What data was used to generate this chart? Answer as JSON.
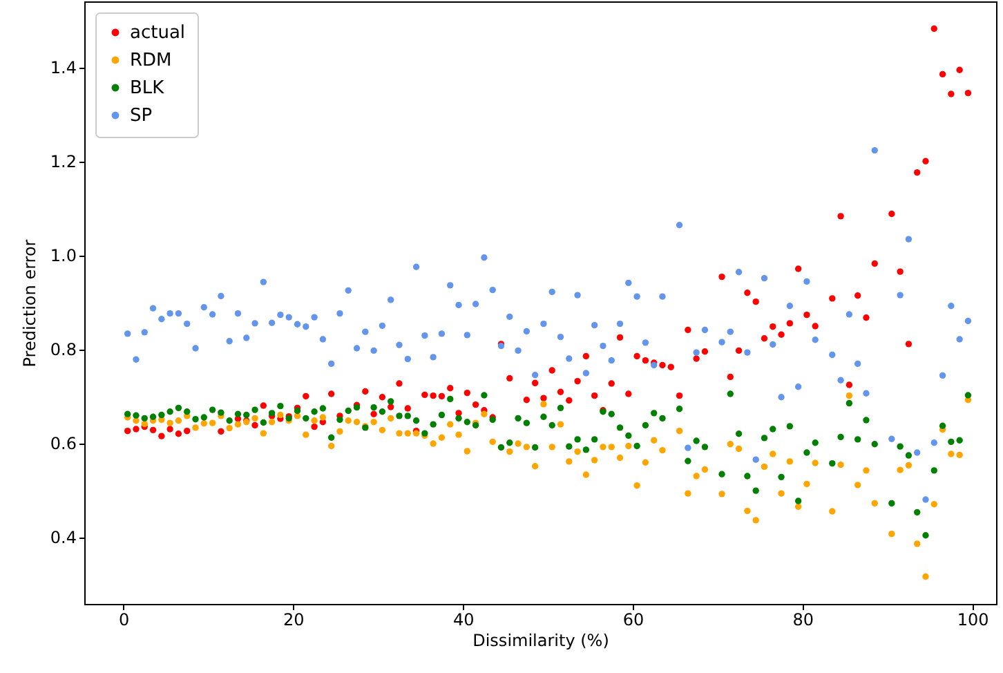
{
  "chart_data": {
    "type": "scatter",
    "xlabel": "Dissimilarity (%)",
    "ylabel": "Prediction error",
    "xlim": [
      -4.6,
      102.8
    ],
    "ylim": [
      0.258,
      1.54
    ],
    "xticks": [
      0,
      20,
      40,
      60,
      80,
      100
    ],
    "yticks": [
      0.4,
      0.6,
      0.8,
      {
        "value": 1.0,
        "label": "1.0"
      },
      1.2,
      1.4
    ],
    "legend": "top left",
    "marker": "circle",
    "series": [
      {
        "name": "actual",
        "color": "#ff0000",
        "x": [
          0.5,
          1.5,
          2.5,
          3.5,
          4.5,
          5.5,
          6.5,
          7.5,
          11.5,
          13.5,
          14.5,
          15.5,
          16.5,
          17.5,
          18.5,
          19.5,
          20.5,
          21.5,
          22.5,
          23.5,
          24.5,
          25.5,
          27.5,
          28.5,
          29.5,
          30.5,
          31.5,
          32.5,
          33.5,
          34.5,
          35.5,
          36.5,
          37.5,
          38.5,
          39.5,
          40.5,
          41.5,
          42.5,
          43.5,
          44.5,
          45.5,
          47.5,
          48.5,
          49.5,
          50.5,
          51.5,
          52.5,
          53.5,
          54.5,
          55.5,
          56.5,
          57.5,
          58.5,
          59.5,
          60.5,
          61.5,
          62.5,
          63.5,
          64.5,
          65.5,
          66.5,
          67.5,
          68.5,
          70.5,
          71.5,
          72.5,
          73.5,
          74.5,
          75.5,
          76.5,
          77.5,
          78.5,
          79.5,
          80.5,
          81.5,
          83.5,
          84.5,
          85.5,
          86.5,
          87.5,
          88.5,
          90.5,
          91.5,
          92.5,
          93.5,
          94.5,
          95.5,
          96.5,
          97.5,
          98.5,
          99.5
        ],
        "values": [
          0.626,
          0.63,
          0.635,
          0.628,
          0.615,
          0.63,
          0.62,
          0.626,
          0.625,
          0.652,
          0.648,
          0.638,
          0.68,
          0.658,
          0.652,
          0.657,
          0.675,
          0.7,
          0.635,
          0.645,
          0.705,
          0.658,
          0.681,
          0.71,
          0.662,
          0.698,
          0.677,
          0.727,
          0.674,
          0.626,
          0.703,
          0.701,
          0.7,
          0.717,
          0.664,
          0.707,
          0.682,
          0.67,
          0.655,
          0.811,
          0.738,
          0.692,
          0.728,
          0.696,
          0.755,
          0.709,
          0.691,
          0.732,
          0.785,
          0.701,
          0.67,
          0.727,
          0.825,
          0.705,
          0.785,
          0.776,
          0.771,
          0.766,
          0.762,
          0.701,
          0.841,
          0.78,
          0.795,
          0.954,
          0.741,
          0.797,
          0.92,
          0.901,
          0.823,
          0.848,
          0.831,
          0.855,
          0.971,
          0.873,
          0.849,
          0.908,
          1.083,
          0.724,
          0.914,
          0.867,
          0.982,
          1.088,
          0.965,
          0.811,
          1.176,
          1.2,
          1.482,
          1.385,
          1.343,
          1.394,
          1.345
        ]
      },
      {
        "name": "RDM",
        "color": "#ffa500",
        "x": [
          0.5,
          1.5,
          2.5,
          3.5,
          4.5,
          5.5,
          6.5,
          7.5,
          8.5,
          9.5,
          10.5,
          11.5,
          12.5,
          13.5,
          14.5,
          15.5,
          16.5,
          17.5,
          18.5,
          19.5,
          20.5,
          21.5,
          22.5,
          23.5,
          24.5,
          25.5,
          26.5,
          27.5,
          28.5,
          29.5,
          30.5,
          31.5,
          32.5,
          33.5,
          34.5,
          35.5,
          36.5,
          37.5,
          38.5,
          39.5,
          40.5,
          41.5,
          42.5,
          43.5,
          45.5,
          46.5,
          47.5,
          48.5,
          49.5,
          50.5,
          51.5,
          52.5,
          53.5,
          54.5,
          55.5,
          56.5,
          57.5,
          58.5,
          59.5,
          60.5,
          61.5,
          62.5,
          63.5,
          65.5,
          66.5,
          67.5,
          68.5,
          70.5,
          71.5,
          72.5,
          73.5,
          74.5,
          75.5,
          76.5,
          77.5,
          78.5,
          79.5,
          80.5,
          81.5,
          83.5,
          84.5,
          85.5,
          86.5,
          87.5,
          88.5,
          90.5,
          91.5,
          92.5,
          93.5,
          94.5,
          95.5,
          96.5,
          97.5,
          98.5,
          99.5
        ],
        "values": [
          0.655,
          0.648,
          0.641,
          0.648,
          0.65,
          0.643,
          0.648,
          0.658,
          0.633,
          0.642,
          0.643,
          0.658,
          0.632,
          0.64,
          0.645,
          0.653,
          0.621,
          0.645,
          0.66,
          0.648,
          0.658,
          0.618,
          0.648,
          0.655,
          0.594,
          0.625,
          0.648,
          0.645,
          0.636,
          0.645,
          0.628,
          0.653,
          0.621,
          0.621,
          0.621,
          0.616,
          0.599,
          0.612,
          0.64,
          0.618,
          0.583,
          0.643,
          0.662,
          0.603,
          0.582,
          0.599,
          0.592,
          0.551,
          0.683,
          0.592,
          0.64,
          0.561,
          0.582,
          0.533,
          0.564,
          0.592,
          0.592,
          0.569,
          0.594,
          0.51,
          0.559,
          0.606,
          0.585,
          0.626,
          0.493,
          0.53,
          0.544,
          0.492,
          0.598,
          0.588,
          0.456,
          0.436,
          0.55,
          0.577,
          0.493,
          0.561,
          0.465,
          0.513,
          0.558,
          0.455,
          0.554,
          0.701,
          0.511,
          0.542,
          0.472,
          0.407,
          0.543,
          0.553,
          0.386,
          0.316,
          0.47,
          0.629,
          0.577,
          0.575,
          0.692
        ]
      },
      {
        "name": "BLK",
        "color": "#008000",
        "x": [
          0.5,
          1.5,
          2.5,
          3.5,
          4.5,
          5.5,
          6.5,
          7.5,
          8.5,
          9.5,
          10.5,
          11.5,
          12.5,
          13.5,
          14.5,
          15.5,
          16.5,
          17.5,
          18.5,
          19.5,
          20.5,
          21.5,
          22.5,
          23.5,
          24.5,
          25.5,
          26.5,
          27.5,
          28.5,
          29.5,
          30.5,
          31.5,
          32.5,
          33.5,
          34.5,
          35.5,
          36.5,
          37.5,
          38.5,
          39.5,
          40.5,
          41.5,
          42.5,
          43.5,
          44.5,
          45.5,
          46.5,
          47.5,
          48.5,
          49.5,
          50.5,
          51.5,
          52.5,
          53.5,
          54.5,
          55.5,
          56.5,
          57.5,
          58.5,
          59.5,
          60.5,
          61.5,
          62.5,
          63.5,
          65.5,
          66.5,
          67.5,
          68.5,
          70.5,
          71.5,
          72.5,
          73.5,
          74.5,
          75.5,
          76.5,
          77.5,
          78.5,
          79.5,
          80.5,
          81.5,
          83.5,
          84.5,
          85.5,
          86.5,
          87.5,
          88.5,
          90.5,
          91.5,
          92.5,
          93.5,
          94.5,
          95.5,
          96.5,
          97.5,
          98.5,
          99.5
        ],
        "values": [
          0.662,
          0.659,
          0.653,
          0.656,
          0.66,
          0.667,
          0.675,
          0.667,
          0.651,
          0.655,
          0.671,
          0.665,
          0.648,
          0.662,
          0.66,
          0.671,
          0.644,
          0.664,
          0.679,
          0.653,
          0.669,
          0.653,
          0.667,
          0.674,
          0.612,
          0.65,
          0.669,
          0.676,
          0.633,
          0.676,
          0.667,
          0.689,
          0.658,
          0.658,
          0.648,
          0.621,
          0.64,
          0.66,
          0.694,
          0.653,
          0.645,
          0.638,
          0.702,
          0.65,
          0.591,
          0.601,
          0.653,
          0.643,
          0.591,
          0.656,
          0.638,
          0.675,
          0.593,
          0.608,
          0.586,
          0.608,
          0.667,
          0.662,
          0.633,
          0.616,
          0.594,
          0.638,
          0.664,
          0.653,
          0.673,
          0.562,
          0.605,
          0.592,
          0.534,
          0.705,
          0.62,
          0.53,
          0.499,
          0.611,
          0.63,
          0.528,
          0.636,
          0.477,
          0.58,
          0.601,
          0.557,
          0.613,
          0.685,
          0.608,
          0.649,
          0.598,
          0.472,
          0.593,
          0.574,
          0.453,
          0.404,
          0.542,
          0.637,
          0.603,
          0.606,
          0.702
        ]
      },
      {
        "name": "SP",
        "color": "#6495ed",
        "x": [
          0.5,
          1.5,
          2.5,
          3.5,
          4.5,
          5.5,
          6.5,
          7.5,
          8.5,
          9.5,
          10.5,
          11.5,
          12.5,
          13.5,
          14.5,
          15.5,
          16.5,
          17.5,
          18.5,
          19.5,
          20.5,
          21.5,
          22.5,
          23.5,
          24.5,
          25.5,
          26.5,
          27.5,
          28.5,
          29.5,
          30.5,
          31.5,
          32.5,
          33.5,
          34.5,
          35.5,
          36.5,
          37.5,
          38.5,
          39.5,
          40.5,
          41.5,
          42.5,
          43.5,
          44.5,
          45.5,
          46.5,
          47.5,
          48.5,
          49.5,
          50.5,
          51.5,
          52.5,
          53.5,
          54.5,
          55.5,
          56.5,
          57.5,
          58.5,
          59.5,
          60.5,
          61.5,
          62.5,
          63.5,
          65.5,
          66.5,
          67.5,
          68.5,
          70.5,
          71.5,
          72.5,
          73.5,
          74.5,
          75.5,
          76.5,
          77.5,
          78.5,
          79.5,
          80.5,
          81.5,
          83.5,
          84.5,
          85.5,
          86.5,
          87.5,
          88.5,
          90.5,
          91.5,
          92.5,
          93.5,
          94.5,
          95.5,
          96.5,
          97.5,
          98.5,
          99.5
        ],
        "values": [
          0.833,
          0.778,
          0.836,
          0.887,
          0.864,
          0.876,
          0.876,
          0.854,
          0.802,
          0.889,
          0.874,
          0.913,
          0.817,
          0.876,
          0.824,
          0.855,
          0.943,
          0.856,
          0.873,
          0.868,
          0.853,
          0.848,
          0.868,
          0.821,
          0.769,
          0.876,
          0.925,
          0.802,
          0.837,
          0.797,
          0.85,
          0.905,
          0.809,
          0.779,
          0.975,
          0.829,
          0.783,
          0.833,
          0.936,
          0.894,
          0.83,
          0.896,
          0.995,
          0.926,
          0.807,
          0.869,
          0.797,
          0.838,
          0.745,
          0.854,
          0.922,
          0.826,
          0.78,
          0.915,
          0.749,
          0.851,
          0.807,
          0.776,
          0.854,
          0.941,
          0.912,
          0.814,
          0.766,
          0.912,
          1.064,
          0.59,
          0.793,
          0.841,
          0.815,
          0.837,
          0.964,
          0.793,
          0.565,
          0.951,
          0.81,
          0.698,
          0.892,
          0.72,
          0.944,
          0.82,
          0.788,
          0.734,
          0.874,
          0.769,
          0.706,
          1.223,
          0.609,
          0.915,
          1.034,
          0.58,
          0.48,
          0.601,
          0.744,
          0.892,
          0.821,
          0.86
        ]
      }
    ]
  }
}
